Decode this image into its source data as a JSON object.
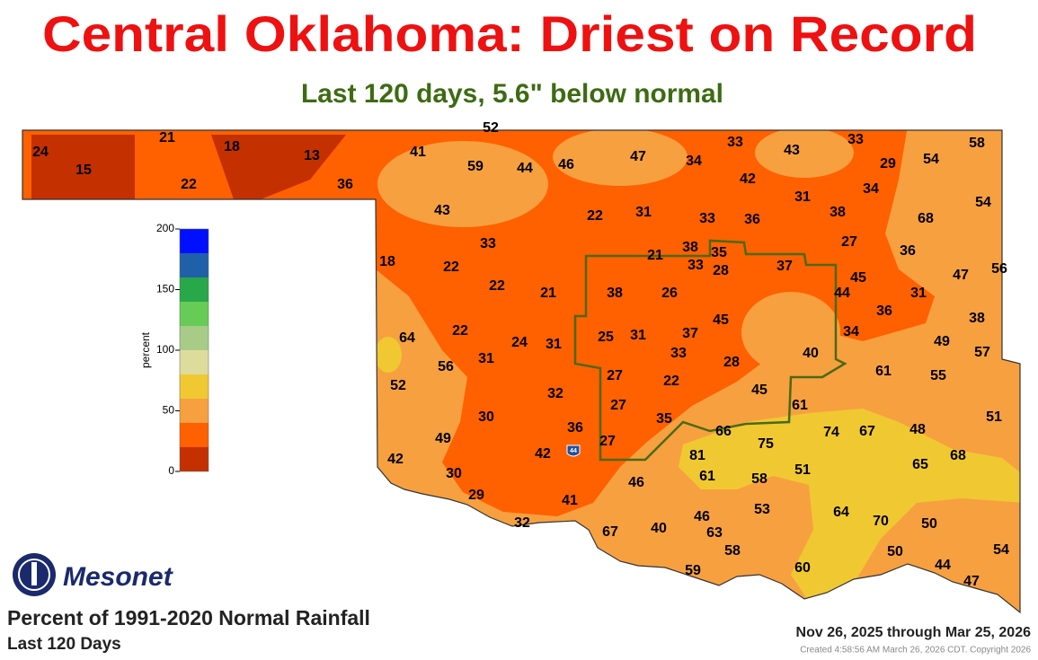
{
  "header": {
    "title": "Central Oklahoma: Driest on Record",
    "subtitle": "Last 120 days, 5.6\" below normal"
  },
  "map": {
    "station_values": [
      24,
      15,
      21,
      22,
      18,
      13,
      36,
      52,
      41,
      59,
      44,
      46,
      47,
      33,
      34,
      43,
      33,
      29,
      54,
      58,
      42,
      31,
      34,
      43,
      22,
      31,
      33,
      36,
      38,
      68,
      54,
      33,
      21,
      38,
      35,
      27,
      36,
      18,
      22,
      33,
      28,
      37,
      45,
      47,
      56,
      22,
      21,
      38,
      26,
      44,
      31,
      36,
      38,
      64,
      22,
      25,
      31,
      37,
      45,
      34,
      49,
      57,
      24,
      31,
      33,
      40,
      56,
      31,
      28,
      61,
      55,
      52,
      27,
      22,
      32,
      45,
      61,
      27,
      30,
      36,
      35,
      66,
      75,
      74,
      67,
      48,
      51,
      49,
      27,
      42,
      42,
      81,
      51,
      65,
      68,
      30,
      46,
      61,
      58,
      29,
      41,
      53,
      46,
      64,
      70,
      50,
      32,
      67,
      40,
      63,
      58,
      50,
      54,
      59,
      60,
      44,
      47
    ],
    "interstate_shield": "44"
  },
  "legend": {
    "label": "percent",
    "lim": [
      0,
      200
    ],
    "ticks": [
      0,
      50,
      100,
      150,
      200
    ],
    "bins": [
      0,
      20,
      40,
      60,
      80,
      100,
      120,
      140,
      160,
      180,
      200
    ],
    "colors": [
      "#c43000",
      "#ff6000",
      "#f7a040",
      "#f0c832",
      "#dedc9c",
      "#a8cc88",
      "#66cc55",
      "#28a848",
      "#2060a8",
      "#0010ff"
    ]
  },
  "footer": {
    "logo": "Mesonet",
    "product": "Percent of 1991-2020 Normal Rainfall",
    "period": "Last 120 Days",
    "dates": "Nov 26, 2025 through Mar 25, 2026",
    "created": "Created 4:58:56 AM March 26, 2026 CDT. Copyright 2026"
  }
}
